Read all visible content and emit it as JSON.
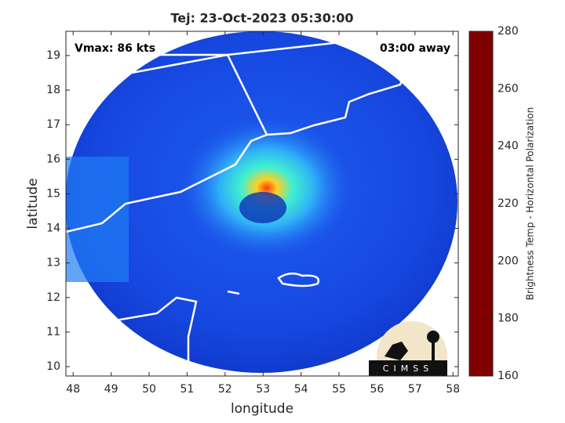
{
  "chart_data": {
    "type": "satellite-map",
    "title": "Tej: 23-Oct-2023 05:30:00",
    "annotations": [
      "Vmax: 86 kts",
      "03:00 away"
    ],
    "x_label": "longitude",
    "y_label": "latitude",
    "xlim": [
      47.81,
      58.14
    ],
    "xticks": [
      48,
      49,
      50,
      51,
      52,
      53,
      54,
      55,
      56,
      57,
      58
    ],
    "ylim": [
      9.73,
      19.7
    ],
    "yticks": [
      10,
      11,
      12,
      13,
      14,
      15,
      16,
      17,
      18,
      19
    ],
    "colorbar": {
      "label": "Brightness Temp - Horizontal Polarization",
      "colormap": "jet",
      "lim": [
        160,
        280
      ],
      "ticks": [
        160,
        180,
        200,
        220,
        240,
        260,
        280
      ]
    },
    "logo": "CIMSS"
  }
}
